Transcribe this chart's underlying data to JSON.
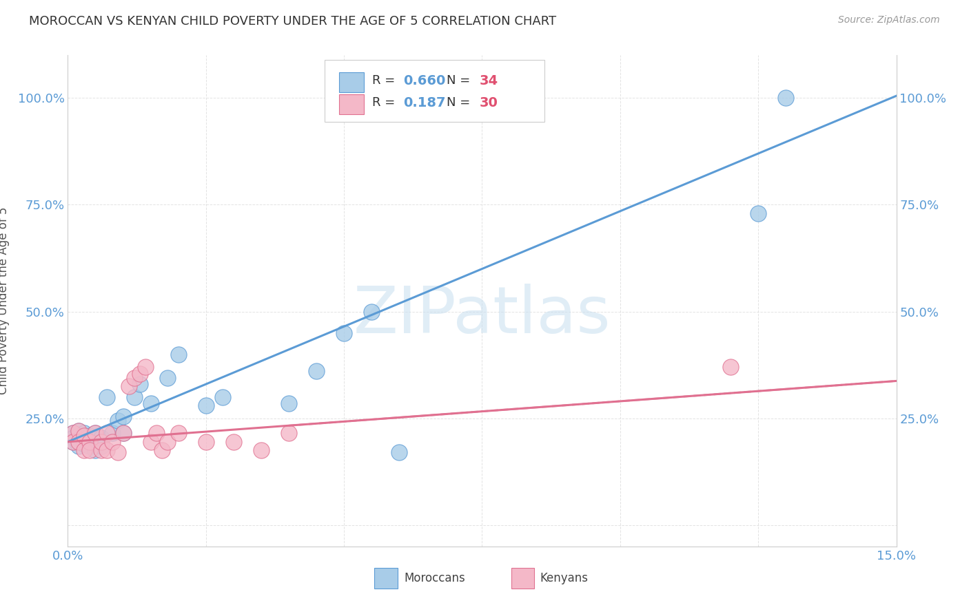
{
  "title": "MOROCCAN VS KENYAN CHILD POVERTY UNDER THE AGE OF 5 CORRELATION CHART",
  "source": "Source: ZipAtlas.com",
  "ylabel": "Child Poverty Under the Age of 5",
  "xlim": [
    0.0,
    0.15
  ],
  "ylim": [
    -0.05,
    1.1
  ],
  "moroccan_color": "#a8cce8",
  "moroccan_edge_color": "#5b9bd5",
  "kenyan_color": "#f4b8c8",
  "kenyan_edge_color": "#e07090",
  "moroccan_line_color": "#5b9bd5",
  "kenyan_line_color": "#e07090",
  "R_moroccan": "0.660",
  "N_moroccan": "34",
  "R_kenyan": "0.187",
  "N_kenyan": "30",
  "watermark": "ZIPatlas",
  "moroccan_x": [
    0.001,
    0.001,
    0.001,
    0.002,
    0.002,
    0.002,
    0.003,
    0.003,
    0.003,
    0.004,
    0.004,
    0.005,
    0.005,
    0.006,
    0.006,
    0.007,
    0.008,
    0.009,
    0.01,
    0.01,
    0.012,
    0.013,
    0.015,
    0.018,
    0.02,
    0.025,
    0.028,
    0.04,
    0.045,
    0.05,
    0.055,
    0.06,
    0.125,
    0.13
  ],
  "moroccan_y": [
    0.215,
    0.205,
    0.195,
    0.22,
    0.21,
    0.185,
    0.215,
    0.2,
    0.19,
    0.21,
    0.185,
    0.215,
    0.175,
    0.185,
    0.205,
    0.3,
    0.215,
    0.245,
    0.255,
    0.215,
    0.3,
    0.33,
    0.285,
    0.345,
    0.4,
    0.28,
    0.3,
    0.285,
    0.36,
    0.45,
    0.5,
    0.17,
    0.73,
    1.0
  ],
  "kenyan_x": [
    0.001,
    0.001,
    0.002,
    0.002,
    0.003,
    0.003,
    0.004,
    0.004,
    0.005,
    0.006,
    0.006,
    0.007,
    0.007,
    0.008,
    0.009,
    0.01,
    0.011,
    0.012,
    0.013,
    0.014,
    0.015,
    0.016,
    0.017,
    0.018,
    0.02,
    0.025,
    0.03,
    0.035,
    0.04,
    0.12
  ],
  "kenyan_y": [
    0.215,
    0.195,
    0.22,
    0.195,
    0.175,
    0.21,
    0.195,
    0.175,
    0.215,
    0.175,
    0.195,
    0.215,
    0.175,
    0.195,
    0.17,
    0.215,
    0.325,
    0.345,
    0.355,
    0.37,
    0.195,
    0.215,
    0.175,
    0.195,
    0.215,
    0.195,
    0.195,
    0.175,
    0.215,
    0.37
  ],
  "line_intercept_moroccan": 0.195,
  "line_slope_moroccan": 5.4,
  "line_intercept_kenyan": 0.195,
  "line_slope_kenyan": 0.95
}
